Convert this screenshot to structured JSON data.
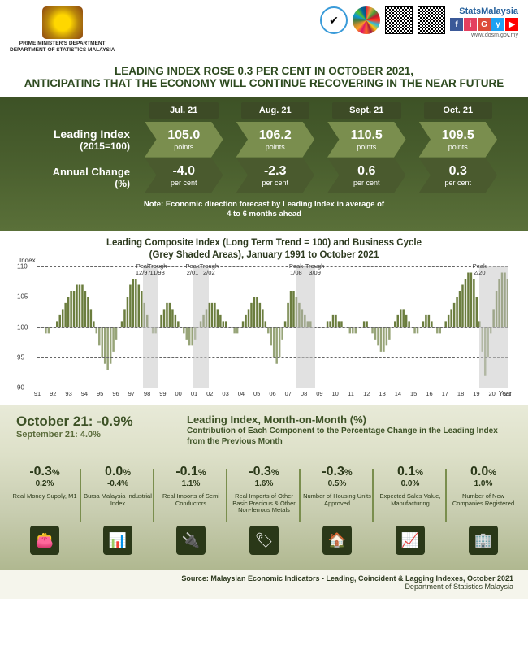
{
  "header": {
    "dept_line1": "PRIME MINISTER'S DEPARTMENT",
    "dept_line2": "DEPARTMENT OF STATISTICS MALAYSIA",
    "stats_title": "StatsMalaysia",
    "url": "www.dosm.gov.my",
    "social": [
      "f",
      "i",
      "G",
      "y",
      "▶"
    ],
    "social_colors": [
      "#3b5998",
      "#e4405f",
      "#dd4b39",
      "#1da1f2",
      "#ff0000"
    ]
  },
  "title": {
    "line1": "LEADING INDEX ROSE 0.3 PER CENT IN OCTOBER 2021,",
    "line2": "ANTICIPATING THAT THE ECONOMY WILL CONTINUE RECOVERING IN THE NEAR FUTURE"
  },
  "monthly": {
    "row_label_1a": "Leading Index",
    "row_label_1b": "(2015=100)",
    "row_label_2a": "Annual Change",
    "row_label_2b": "(%)",
    "months": [
      {
        "label": "Jul. 21",
        "points": "105.0",
        "points_unit": "points",
        "change": "-4.0",
        "change_unit": "per cent"
      },
      {
        "label": "Aug. 21",
        "points": "106.2",
        "points_unit": "points",
        "change": "-2.3",
        "change_unit": "per cent"
      },
      {
        "label": "Sept. 21",
        "points": "110.5",
        "points_unit": "points",
        "change": "0.6",
        "change_unit": "per cent"
      },
      {
        "label": "Oct. 21",
        "points": "109.5",
        "points_unit": "points",
        "change": "0.3",
        "change_unit": "per cent"
      }
    ],
    "note_line1": "Note: Economic direction forecast by Leading Index in average of",
    "note_line2": "4 to 6 months ahead"
  },
  "chart": {
    "title_line1": "Leading Composite Index (Long Term Trend = 100) and Business Cycle",
    "title_line2": "(Grey Shaded Areas), January 1991 to October 2021",
    "y_title": "Index",
    "x_title": "Year",
    "y_ticks": [
      90,
      95,
      100,
      105,
      110
    ],
    "y_min": 90,
    "y_max": 110,
    "x_labels": [
      "91",
      "92",
      "93",
      "94",
      "95",
      "96",
      "97",
      "98",
      "99",
      "00",
      "01",
      "02",
      "03",
      "04",
      "05",
      "06",
      "07",
      "08",
      "09",
      "10",
      "11",
      "12",
      "13",
      "14",
      "15",
      "16",
      "17",
      "18",
      "19",
      "20",
      "21"
    ],
    "peaks": [
      {
        "label_top": "Peak",
        "label_bot": "12/97",
        "pos_pct": 22.5
      },
      {
        "label_top": "Trough",
        "label_bot": "11/98",
        "pos_pct": 25.5
      },
      {
        "label_top": "Peak",
        "label_bot": "2/01",
        "pos_pct": 33
      },
      {
        "label_top": "Trough",
        "label_bot": "2/02",
        "pos_pct": 36.5
      },
      {
        "label_top": "Peak",
        "label_bot": "1/08",
        "pos_pct": 55
      },
      {
        "label_top": "Trough",
        "label_bot": "3/09",
        "pos_pct": 59
      },
      {
        "label_top": "Peak",
        "label_bot": "2/20",
        "pos_pct": 94
      }
    ],
    "grey_bands": [
      {
        "start_pct": 22.5,
        "end_pct": 25.5
      },
      {
        "start_pct": 33,
        "end_pct": 36.5
      },
      {
        "start_pct": 55,
        "end_pct": 59
      },
      {
        "start_pct": 94,
        "end_pct": 100
      }
    ],
    "series": [
      100,
      100,
      100,
      99,
      99,
      100,
      100,
      101,
      102,
      103,
      104,
      105,
      106,
      106,
      107,
      107,
      107,
      106,
      105,
      103,
      101,
      99,
      97,
      95,
      94,
      93,
      94,
      96,
      98,
      100,
      101,
      103,
      105,
      107,
      108,
      108,
      107,
      106,
      104,
      102,
      100,
      99,
      99,
      100,
      102,
      103,
      104,
      104,
      103,
      102,
      101,
      100,
      99,
      98,
      97,
      97,
      98,
      100,
      101,
      102,
      103,
      104,
      104,
      104,
      103,
      102,
      101,
      101,
      100,
      100,
      99,
      99,
      100,
      101,
      102,
      103,
      104,
      105,
      105,
      104,
      103,
      101,
      99,
      97,
      95,
      94,
      95,
      98,
      101,
      104,
      106,
      106,
      105,
      104,
      103,
      102,
      101,
      101,
      100,
      100,
      100,
      100,
      100,
      101,
      101,
      102,
      102,
      101,
      101,
      100,
      100,
      99,
      99,
      99,
      100,
      100,
      101,
      101,
      100,
      99,
      98,
      97,
      96,
      96,
      97,
      98,
      100,
      101,
      102,
      103,
      103,
      102,
      101,
      100,
      99,
      99,
      100,
      101,
      102,
      102,
      101,
      100,
      99,
      99,
      100,
      101,
      102,
      103,
      104,
      105,
      106,
      107,
      108,
      109,
      109,
      108,
      105,
      101,
      96,
      92,
      95,
      99,
      103,
      106,
      108,
      109,
      109,
      108
    ],
    "series_color": "#6b7d3e"
  },
  "mom": {
    "current_label": "October 21: -0.9%",
    "prev_label": "September 21: 4.0%",
    "title": "Leading Index, Month-on-Month (%)",
    "subtitle": "Contribution of Each Component to the Percentage Change in the Leading Index from the Previous Month"
  },
  "components": [
    {
      "v1": "-0.3",
      "v2": "0.2%",
      "label": "Real Money Supply, M1",
      "icon": "👛"
    },
    {
      "v1": "0.0",
      "v2": "-0.4%",
      "label": "Bursa Malaysia Industrial Index",
      "icon": "📊"
    },
    {
      "v1": "-0.1",
      "v2": "1.1%",
      "label": "Real Imports of Semi Conductors",
      "icon": "🔌"
    },
    {
      "v1": "-0.3",
      "v2": "1.6%",
      "label": "Real Imports of Other Basic Precious & Other Non-ferrous Metals",
      "icon": "🏷"
    },
    {
      "v1": "-0.3",
      "v2": "0.5%",
      "label": "Number of Housing Units Approved",
      "icon": "🏠"
    },
    {
      "v1": "0.1",
      "v2": "0.0%",
      "label": "Expected Sales Value, Manufacturing",
      "icon": "📈"
    },
    {
      "v1": "0.0",
      "v2": "1.0%",
      "label": "Number of New Companies Registered",
      "icon": "🏢"
    }
  ],
  "footer": {
    "source": "Source: Malaysian Economic Indicators - Leading, Coincident & Lagging Indexes, October 2021",
    "dept": "Department of Statistics Malaysia"
  }
}
